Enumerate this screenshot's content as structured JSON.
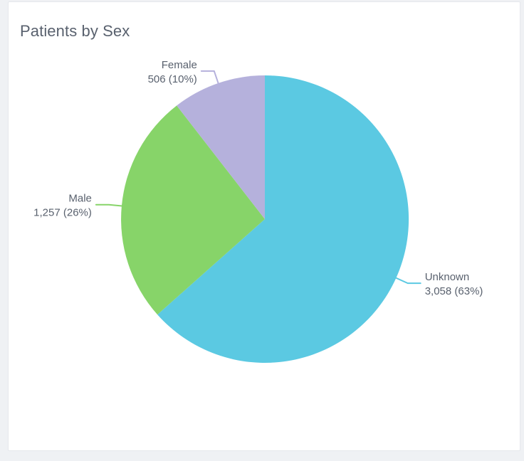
{
  "page": {
    "background_color": "#EFF1F4",
    "card_background_color": "#FFFFFF",
    "card_border_color": "#E5E8EC"
  },
  "header": {
    "title": "Patients by Sex"
  },
  "chart_data": {
    "type": "pie",
    "title": "Patients by Sex",
    "start_angle_deg": 0,
    "direction": "clockwise",
    "legend": "none",
    "label_style": "outside-callout",
    "label_color": "#59616E",
    "slices": [
      {
        "label": "Unknown",
        "value": 3058,
        "pct": 63,
        "display": "3,058 (63%)",
        "color": "#5BC9E2"
      },
      {
        "label": "Male",
        "value": 1257,
        "pct": 26,
        "display": "1,257 (26%)",
        "color": "#87D469"
      },
      {
        "label": "Female",
        "value": 506,
        "pct": 10,
        "display": "506 (10%)",
        "color": "#B5B1DC"
      }
    ]
  }
}
